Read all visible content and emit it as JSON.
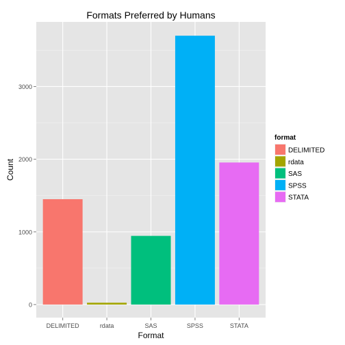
{
  "chart_data": {
    "type": "bar",
    "title": "Formats Preferred by Humans",
    "xlabel": "Format",
    "ylabel": "Count",
    "categories": [
      "DELIMITED",
      "rdata",
      "SAS",
      "SPSS",
      "STATA"
    ],
    "values": [
      1450,
      25,
      945,
      3700,
      1955
    ],
    "yticks": [
      0,
      1000,
      2000,
      3000
    ],
    "ylim": [
      -180,
      3890
    ],
    "grid": true,
    "legend": {
      "title": "format",
      "position": "right",
      "entries": [
        {
          "label": "DELIMITED",
          "color": "#F8766D"
        },
        {
          "label": "rdata",
          "color": "#A3A500"
        },
        {
          "label": "SAS",
          "color": "#00BF7D"
        },
        {
          "label": "SPSS",
          "color": "#00B0F6"
        },
        {
          "label": "STATA",
          "color": "#E76BF3"
        }
      ]
    },
    "colors": {
      "panel_bg": "#E5E5E5",
      "grid_major": "#FFFFFF",
      "grid_minor": "#F2F2F2",
      "tick_text": "#4D4D4D"
    }
  }
}
